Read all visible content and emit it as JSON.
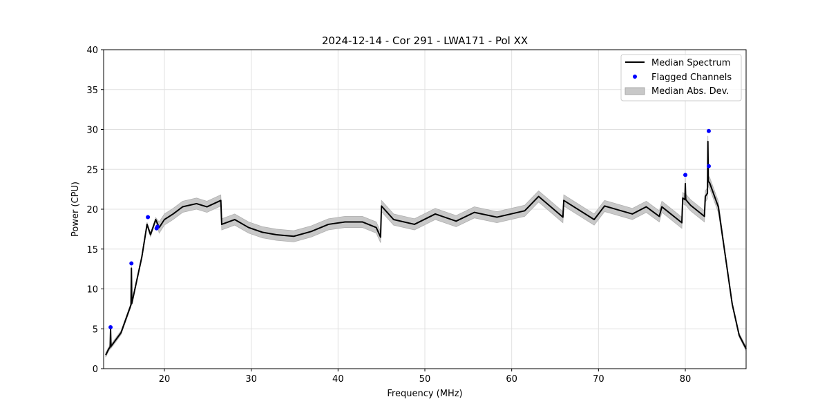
{
  "chart_data": {
    "type": "line",
    "title": "2024-12-14 - Cor 291 - LWA171 - Pol XX",
    "xlabel": "Frequency (MHz)",
    "ylabel": "Power (CPU)",
    "xlim": [
      13.0,
      87.0
    ],
    "ylim": [
      0,
      40
    ],
    "xticks": [
      20,
      30,
      40,
      50,
      60,
      70,
      80
    ],
    "yticks": [
      0,
      5,
      10,
      15,
      20,
      25,
      30,
      35,
      40
    ],
    "grid": true,
    "legend_position": "top-right",
    "legend": [
      "Median Spectrum",
      "Flagged Channels",
      "Median Abs. Dev."
    ],
    "colors": {
      "median": "#000000",
      "flagged": "#0000ff",
      "mad": "#c8c8c8"
    },
    "mad": 0.7,
    "series": [
      {
        "name": "Median Spectrum",
        "x": [
          13.24,
          13.6,
          13.75,
          13.8,
          13.85,
          15.0,
          16.15,
          16.2,
          16.25,
          17.4,
          18.0,
          18.4,
          19.0,
          19.4,
          20.0,
          21.0,
          22.1,
          23.7,
          24.9,
          26.5,
          26.6,
          28.1,
          29.7,
          31.3,
          32.9,
          34.9,
          36.9,
          38.9,
          40.8,
          42.8,
          44.4,
          44.9,
          45.0,
          46.4,
          48.8,
          51.2,
          53.6,
          55.7,
          58.3,
          61.5,
          63.1,
          65.9,
          66.0,
          69.5,
          70.7,
          73.9,
          75.5,
          77.0,
          77.3,
          79.6,
          79.7,
          79.95,
          80.0,
          80.05,
          80.6,
          82.2,
          82.3,
          82.55,
          82.6,
          82.65,
          82.8,
          83.8,
          84.6,
          85.4,
          86.2,
          87.0
        ],
        "y": [
          1.7,
          2.5,
          2.7,
          5.0,
          2.8,
          4.5,
          8.0,
          12.6,
          8.2,
          14.0,
          18.1,
          16.8,
          18.7,
          17.7,
          18.7,
          19.4,
          20.3,
          20.7,
          20.3,
          21.1,
          18.1,
          18.7,
          17.7,
          17.1,
          16.8,
          16.6,
          17.2,
          18.1,
          18.4,
          18.4,
          17.7,
          16.5,
          20.4,
          18.7,
          18.1,
          19.4,
          18.5,
          19.6,
          19.0,
          19.8,
          21.6,
          19.0,
          21.1,
          18.7,
          20.4,
          19.4,
          20.3,
          19.1,
          20.3,
          18.3,
          21.4,
          21.2,
          23.2,
          21.2,
          20.5,
          19.1,
          21.6,
          22.0,
          28.5,
          23.5,
          23.3,
          20.3,
          14.2,
          8.1,
          4.2,
          2.5
        ]
      },
      {
        "name": "Flagged Channels",
        "x": [
          13.8,
          16.2,
          18.1,
          19.1,
          19.2,
          80.0,
          82.7,
          82.7
        ],
        "y": [
          5.2,
          13.2,
          19.0,
          17.6,
          17.8,
          24.3,
          29.8,
          25.4
        ]
      }
    ]
  }
}
